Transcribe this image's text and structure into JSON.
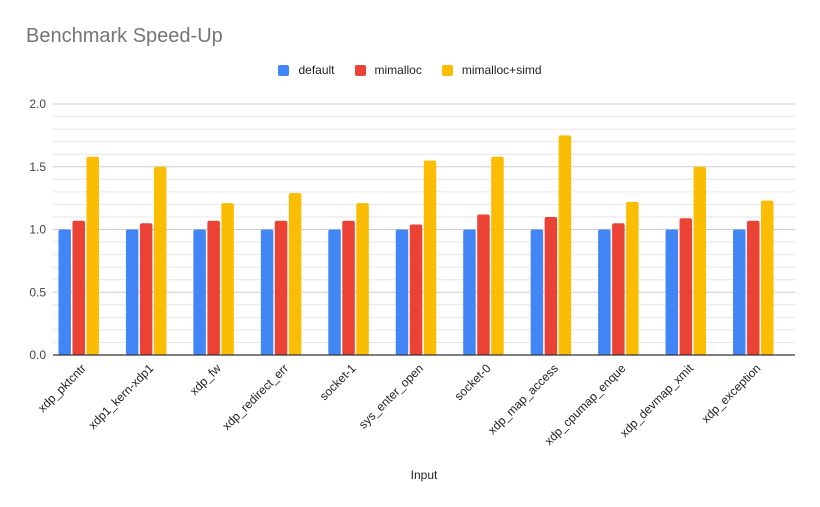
{
  "chart_data": {
    "type": "bar",
    "title": "Benchmark Speed-Up",
    "xlabel": "Input",
    "ylabel": "",
    "ylim": [
      0,
      2.0
    ],
    "yticks": [
      "0.0",
      "0.5",
      "1.0",
      "1.5",
      "2.0"
    ],
    "ytick_values": [
      0,
      0.5,
      1.0,
      1.5,
      2.0
    ],
    "minor_grid_step": 0.1,
    "grid": true,
    "legend_position": "top-center",
    "categories": [
      "xdp_pktcntr",
      "xdp1_kern-xdp1",
      "xdp_fw",
      "xdp_redirect_err",
      "socket-1",
      "sys_enter_open",
      "socket-0",
      "xdp_map_access",
      "xdp_cpumap_enque",
      "xdp_devmap_xmit",
      "xdp_exception"
    ],
    "series": [
      {
        "name": "default",
        "color": "#4285f4",
        "values": [
          1.0,
          1.0,
          1.0,
          1.0,
          1.0,
          1.0,
          1.0,
          1.0,
          1.0,
          1.0,
          1.0
        ]
      },
      {
        "name": "mimalloc",
        "color": "#ea4335",
        "values": [
          1.07,
          1.05,
          1.07,
          1.07,
          1.07,
          1.04,
          1.12,
          1.1,
          1.05,
          1.09,
          1.07
        ]
      },
      {
        "name": "mimalloc+simd",
        "color": "#fbbc04",
        "values": [
          1.58,
          1.5,
          1.21,
          1.29,
          1.21,
          1.55,
          1.58,
          1.75,
          1.22,
          1.5,
          1.23
        ]
      }
    ]
  }
}
